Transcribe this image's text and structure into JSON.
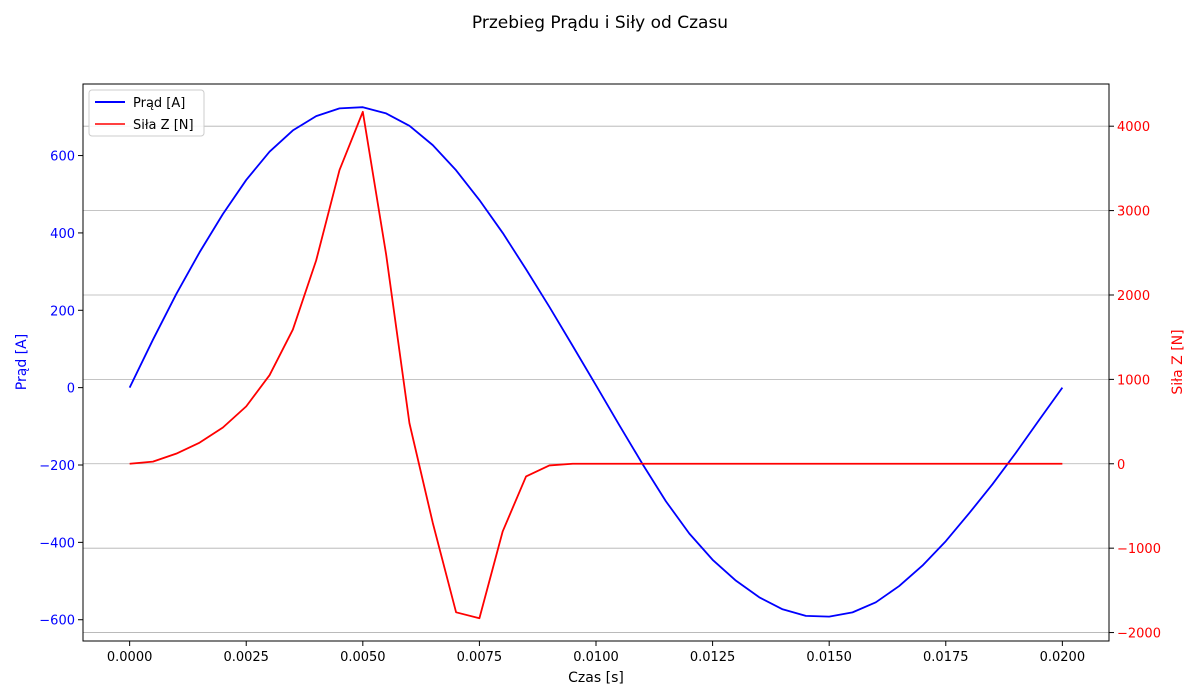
{
  "chart_data": {
    "type": "line",
    "title": "Przebieg Prądu i Siły od Czasu",
    "xlabel": "Czas [s]",
    "ylabel_left": "Prąd [A]",
    "ylabel_right": "Siła Z [N]",
    "xlim": [
      -0.001,
      0.021
    ],
    "ylim_left": [
      -655,
      785
    ],
    "ylim_right": [
      -2100,
      4500
    ],
    "grid": "horizontal (right axis)",
    "legend_position": "top-left",
    "x_ticks": [
      {
        "value": 0.0,
        "label": "0.0000"
      },
      {
        "value": 0.0025,
        "label": "0.0025"
      },
      {
        "value": 0.005,
        "label": "0.0050"
      },
      {
        "value": 0.0075,
        "label": "0.0075"
      },
      {
        "value": 0.01,
        "label": "0.0100"
      },
      {
        "value": 0.0125,
        "label": "0.0125"
      },
      {
        "value": 0.015,
        "label": "0.0150"
      },
      {
        "value": 0.0175,
        "label": "0.0175"
      },
      {
        "value": 0.02,
        "label": "0.0200"
      }
    ],
    "y_ticks_left": [
      {
        "value": -600,
        "label": "−600"
      },
      {
        "value": -400,
        "label": "−400"
      },
      {
        "value": -200,
        "label": "−200"
      },
      {
        "value": 0,
        "label": "0"
      },
      {
        "value": 200,
        "label": "200"
      },
      {
        "value": 400,
        "label": "400"
      },
      {
        "value": 600,
        "label": "600"
      }
    ],
    "y_ticks_right": [
      {
        "value": -2000,
        "label": "−2000"
      },
      {
        "value": -1000,
        "label": "−1000"
      },
      {
        "value": 0,
        "label": "0"
      },
      {
        "value": 1000,
        "label": "1000"
      },
      {
        "value": 2000,
        "label": "2000"
      },
      {
        "value": 3000,
        "label": "3000"
      },
      {
        "value": 4000,
        "label": "4000"
      }
    ],
    "x": [
      0.0,
      0.0005,
      0.001,
      0.0015,
      0.002,
      0.0025,
      0.003,
      0.0035,
      0.004,
      0.0045,
      0.005,
      0.0055,
      0.006,
      0.0065,
      0.007,
      0.0075,
      0.008,
      0.0085,
      0.009,
      0.0095,
      0.01,
      0.0105,
      0.011,
      0.0115,
      0.012,
      0.0125,
      0.013,
      0.0135,
      0.014,
      0.0145,
      0.015,
      0.0155,
      0.016,
      0.0165,
      0.017,
      0.0175,
      0.018,
      0.0185,
      0.019,
      0.0195,
      0.02
    ],
    "series": [
      {
        "name": "Prąd [A]",
        "axis": "left",
        "color": "#0000ff",
        "values": [
          0,
          124,
          242,
          350,
          449,
          537,
          610,
          665,
          702,
          722,
          725,
          709,
          677,
          627,
          562,
          485,
          400,
          306,
          209,
          108,
          6,
          -97,
          -198,
          -294,
          -377,
          -445,
          -499,
          -542,
          -573,
          -590,
          -592,
          -581,
          -555,
          -513,
          -460,
          -397,
          -325,
          -250,
          -169,
          -84,
          0
        ]
      },
      {
        "name": "Siła Z [N]",
        "axis": "right",
        "color": "#ff0000",
        "values": [
          0,
          25,
          120,
          250,
          430,
          680,
          1050,
          1590,
          2410,
          3480,
          4170,
          2480,
          480,
          -700,
          -1760,
          -1830,
          -800,
          -150,
          -20,
          0,
          0,
          0,
          0,
          0,
          0,
          0,
          0,
          0,
          0,
          0,
          0,
          0,
          0,
          0,
          0,
          0,
          0,
          0,
          0,
          0,
          0
        ]
      }
    ]
  }
}
